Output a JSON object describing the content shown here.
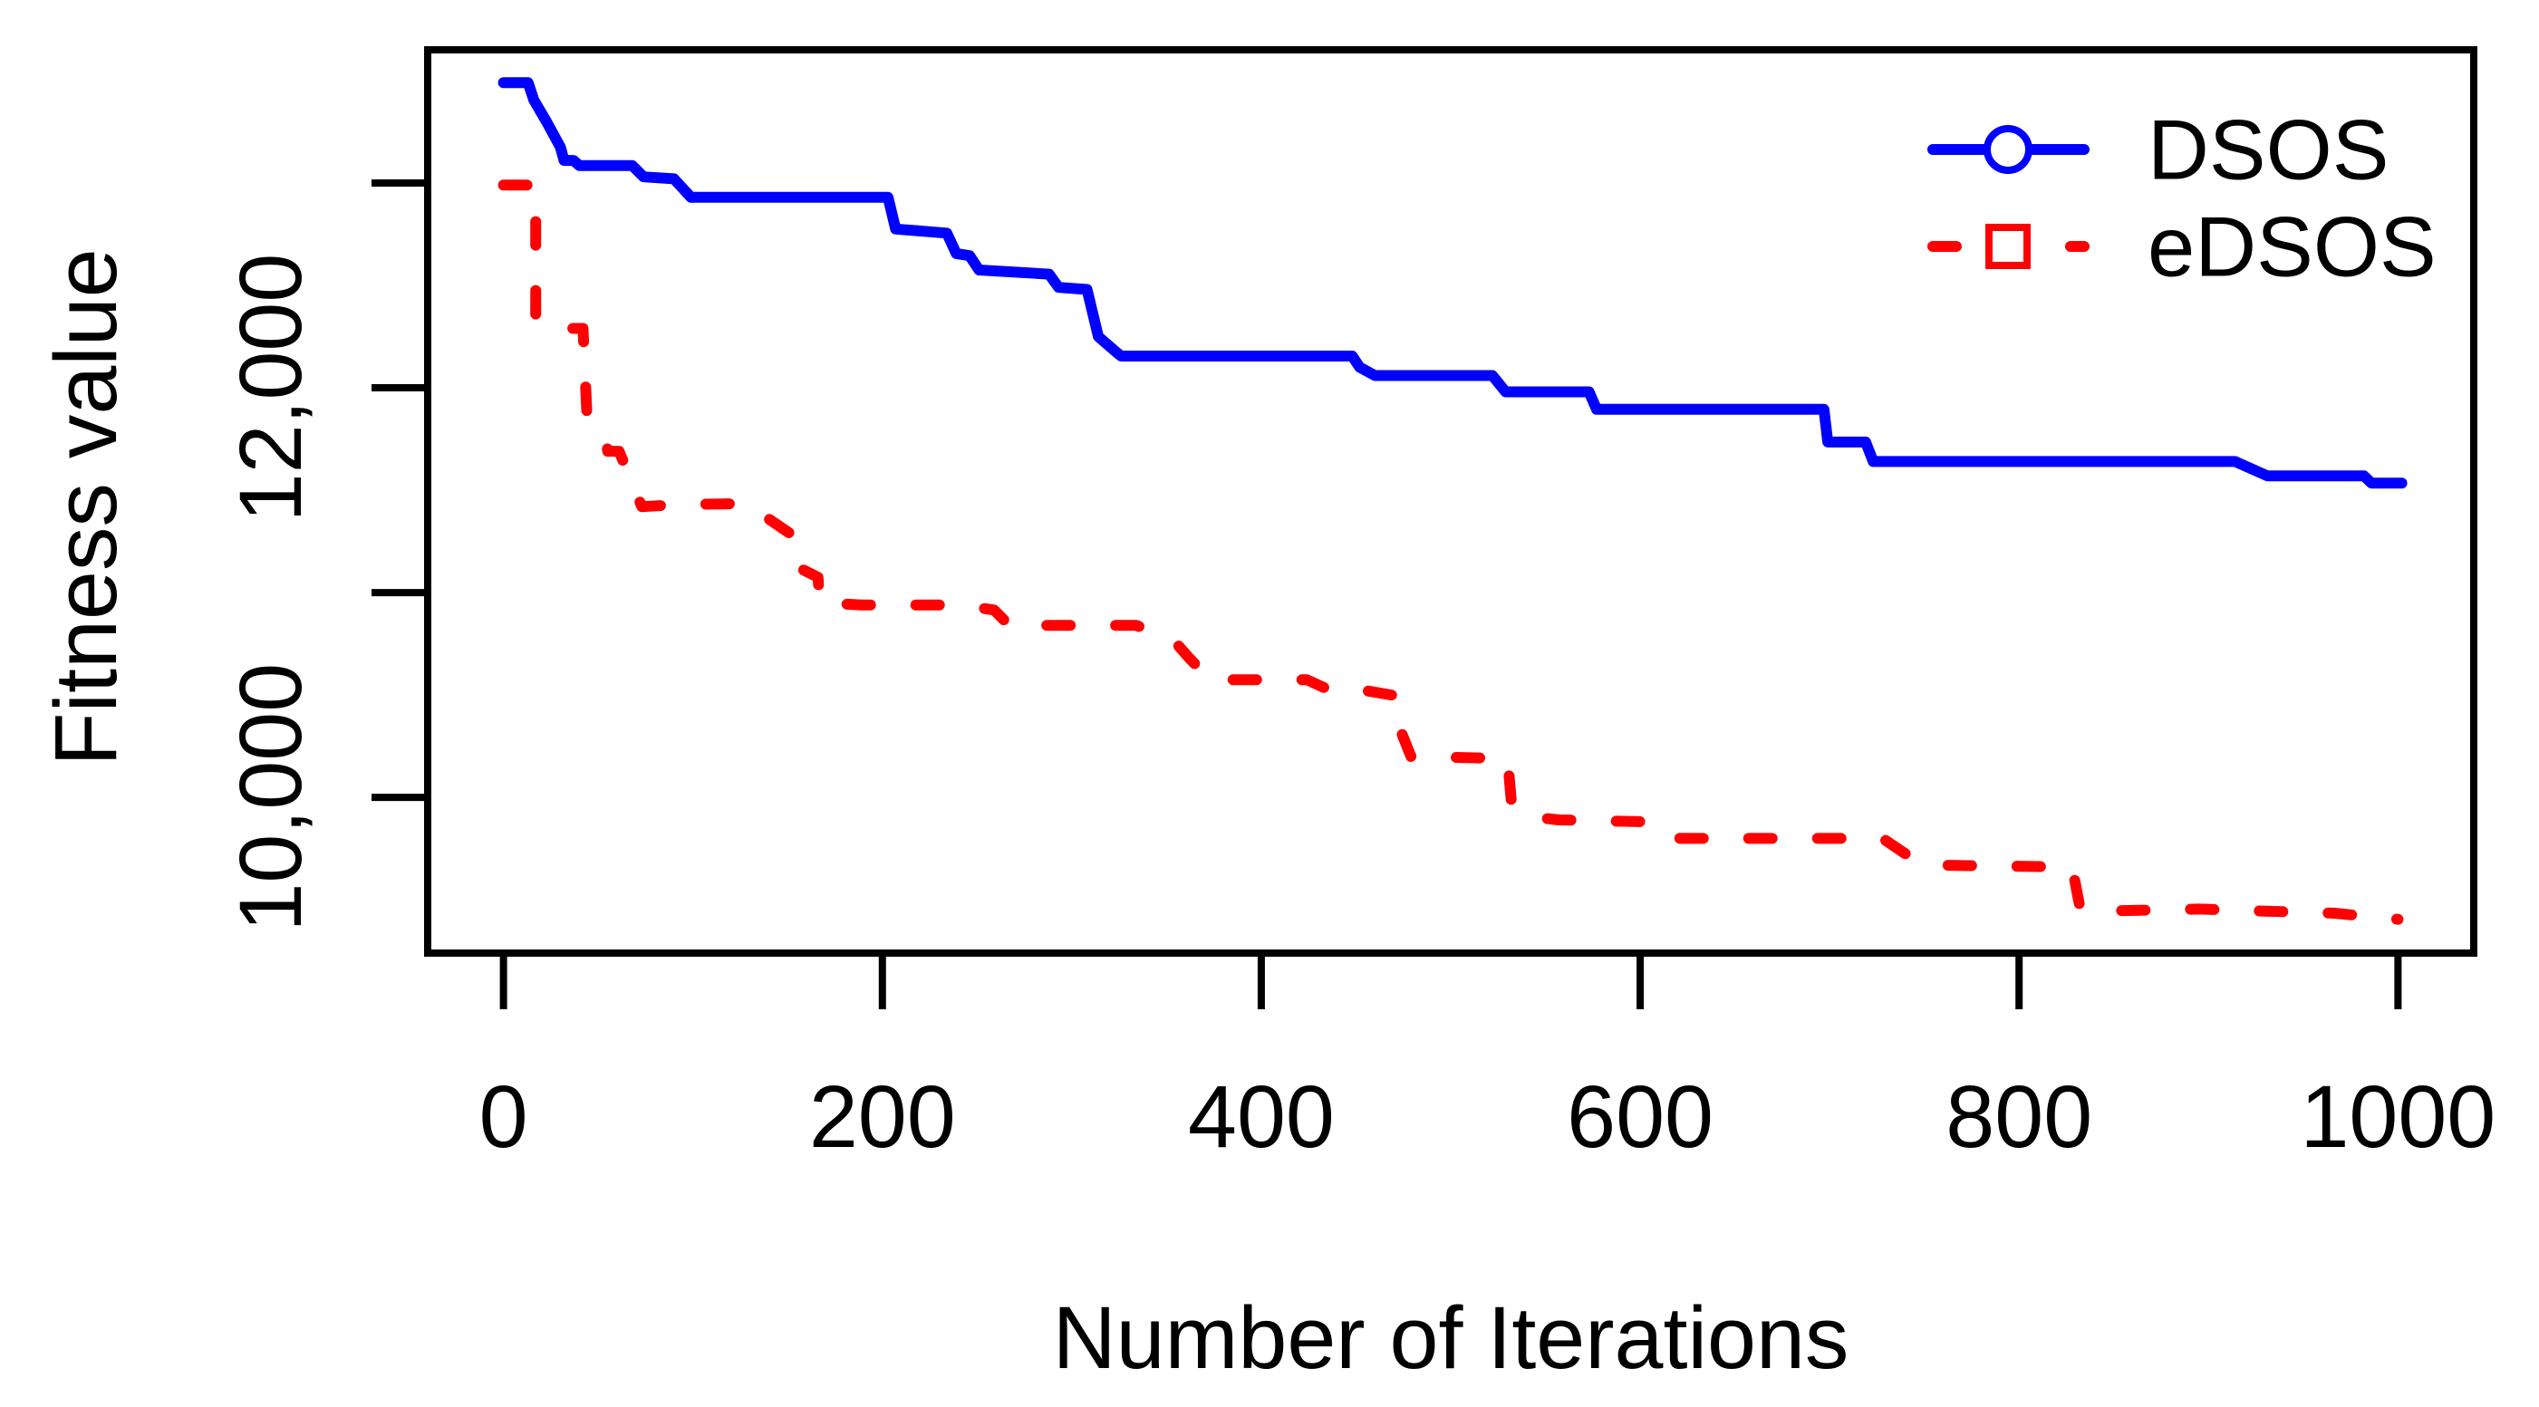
{
  "figure": {
    "background": "#ffffff",
    "axis_color": "#000000"
  },
  "chart_data": {
    "type": "line",
    "title": "",
    "xlabel": "Number of Iterations",
    "ylabel": "Fitness value",
    "xlim": [
      -40,
      1040
    ],
    "ylim": [
      9240,
      13650
    ],
    "grid": false,
    "legend_position": "top-right",
    "x_ticks": [
      {
        "value": 0,
        "label": "0"
      },
      {
        "value": 200,
        "label": "200"
      },
      {
        "value": 400,
        "label": "400"
      },
      {
        "value": 600,
        "label": "600"
      },
      {
        "value": 800,
        "label": "800"
      },
      {
        "value": 1000,
        "label": "1000"
      }
    ],
    "y_ticks": [
      {
        "value": 13000,
        "label": ""
      },
      {
        "value": 12000,
        "label": "12,000"
      },
      {
        "value": 11000,
        "label": ""
      },
      {
        "value": 10000,
        "label": "10,000"
      }
    ],
    "series": [
      {
        "name": "DSOS",
        "color": "#0000ff",
        "line_style": "solid",
        "marker": "circle",
        "points": [
          [
            0,
            13490
          ],
          [
            13,
            13490
          ],
          [
            16,
            13405
          ],
          [
            23,
            13295
          ],
          [
            30,
            13175
          ],
          [
            32,
            13110
          ],
          [
            37,
            13110
          ],
          [
            40,
            13085
          ],
          [
            68,
            13085
          ],
          [
            74,
            13030
          ],
          [
            90,
            13020
          ],
          [
            99,
            12930
          ],
          [
            203,
            12930
          ],
          [
            207,
            12775
          ],
          [
            234,
            12755
          ],
          [
            239,
            12655
          ],
          [
            246,
            12645
          ],
          [
            251,
            12575
          ],
          [
            288,
            12555
          ],
          [
            293,
            12490
          ],
          [
            308,
            12480
          ],
          [
            314,
            12250
          ],
          [
            319,
            12210
          ],
          [
            324,
            12170
          ],
          [
            326,
            12155
          ],
          [
            448,
            12155
          ],
          [
            452,
            12100
          ],
          [
            460,
            12060
          ],
          [
            522,
            12060
          ],
          [
            529,
            11980
          ],
          [
            573,
            11980
          ],
          [
            577,
            11895
          ],
          [
            697,
            11895
          ],
          [
            699,
            11735
          ],
          [
            719,
            11735
          ],
          [
            723,
            11640
          ],
          [
            914,
            11640
          ],
          [
            931,
            11570
          ],
          [
            982,
            11570
          ],
          [
            986,
            11535
          ],
          [
            1002,
            11535
          ]
        ]
      },
      {
        "name": "eDSOS",
        "color": "#ff0000",
        "line_style": "dashed",
        "marker": "square",
        "points": [
          [
            0,
            12990
          ],
          [
            17,
            12990
          ],
          [
            17,
            12325
          ],
          [
            31,
            12290
          ],
          [
            42,
            12290
          ],
          [
            44,
            11880
          ],
          [
            54,
            11770
          ],
          [
            55,
            11690
          ],
          [
            61,
            11690
          ],
          [
            73,
            11420
          ],
          [
            93,
            11430
          ],
          [
            129,
            11435
          ],
          [
            140,
            11360
          ],
          [
            151,
            11290
          ],
          [
            152,
            11140
          ],
          [
            166,
            11075
          ],
          [
            167,
            10950
          ],
          [
            189,
            10940
          ],
          [
            241,
            10940
          ],
          [
            259,
            10915
          ],
          [
            267,
            10840
          ],
          [
            334,
            10840
          ],
          [
            353,
            10775
          ],
          [
            362,
            10680
          ],
          [
            373,
            10575
          ],
          [
            424,
            10575
          ],
          [
            437,
            10520
          ],
          [
            456,
            10520
          ],
          [
            472,
            10495
          ],
          [
            473,
            10340
          ],
          [
            479,
            10200
          ],
          [
            530,
            10190
          ],
          [
            532,
            9980
          ],
          [
            538,
            9910
          ],
          [
            557,
            9890
          ],
          [
            609,
            9880
          ],
          [
            621,
            9800
          ],
          [
            728,
            9800
          ],
          [
            740,
            9725
          ],
          [
            753,
            9670
          ],
          [
            828,
            9660
          ],
          [
            832,
            9470
          ],
          [
            840,
            9445
          ],
          [
            895,
            9455
          ],
          [
            930,
            9445
          ],
          [
            966,
            9435
          ],
          [
            1000,
            9405
          ]
        ]
      }
    ]
  }
}
